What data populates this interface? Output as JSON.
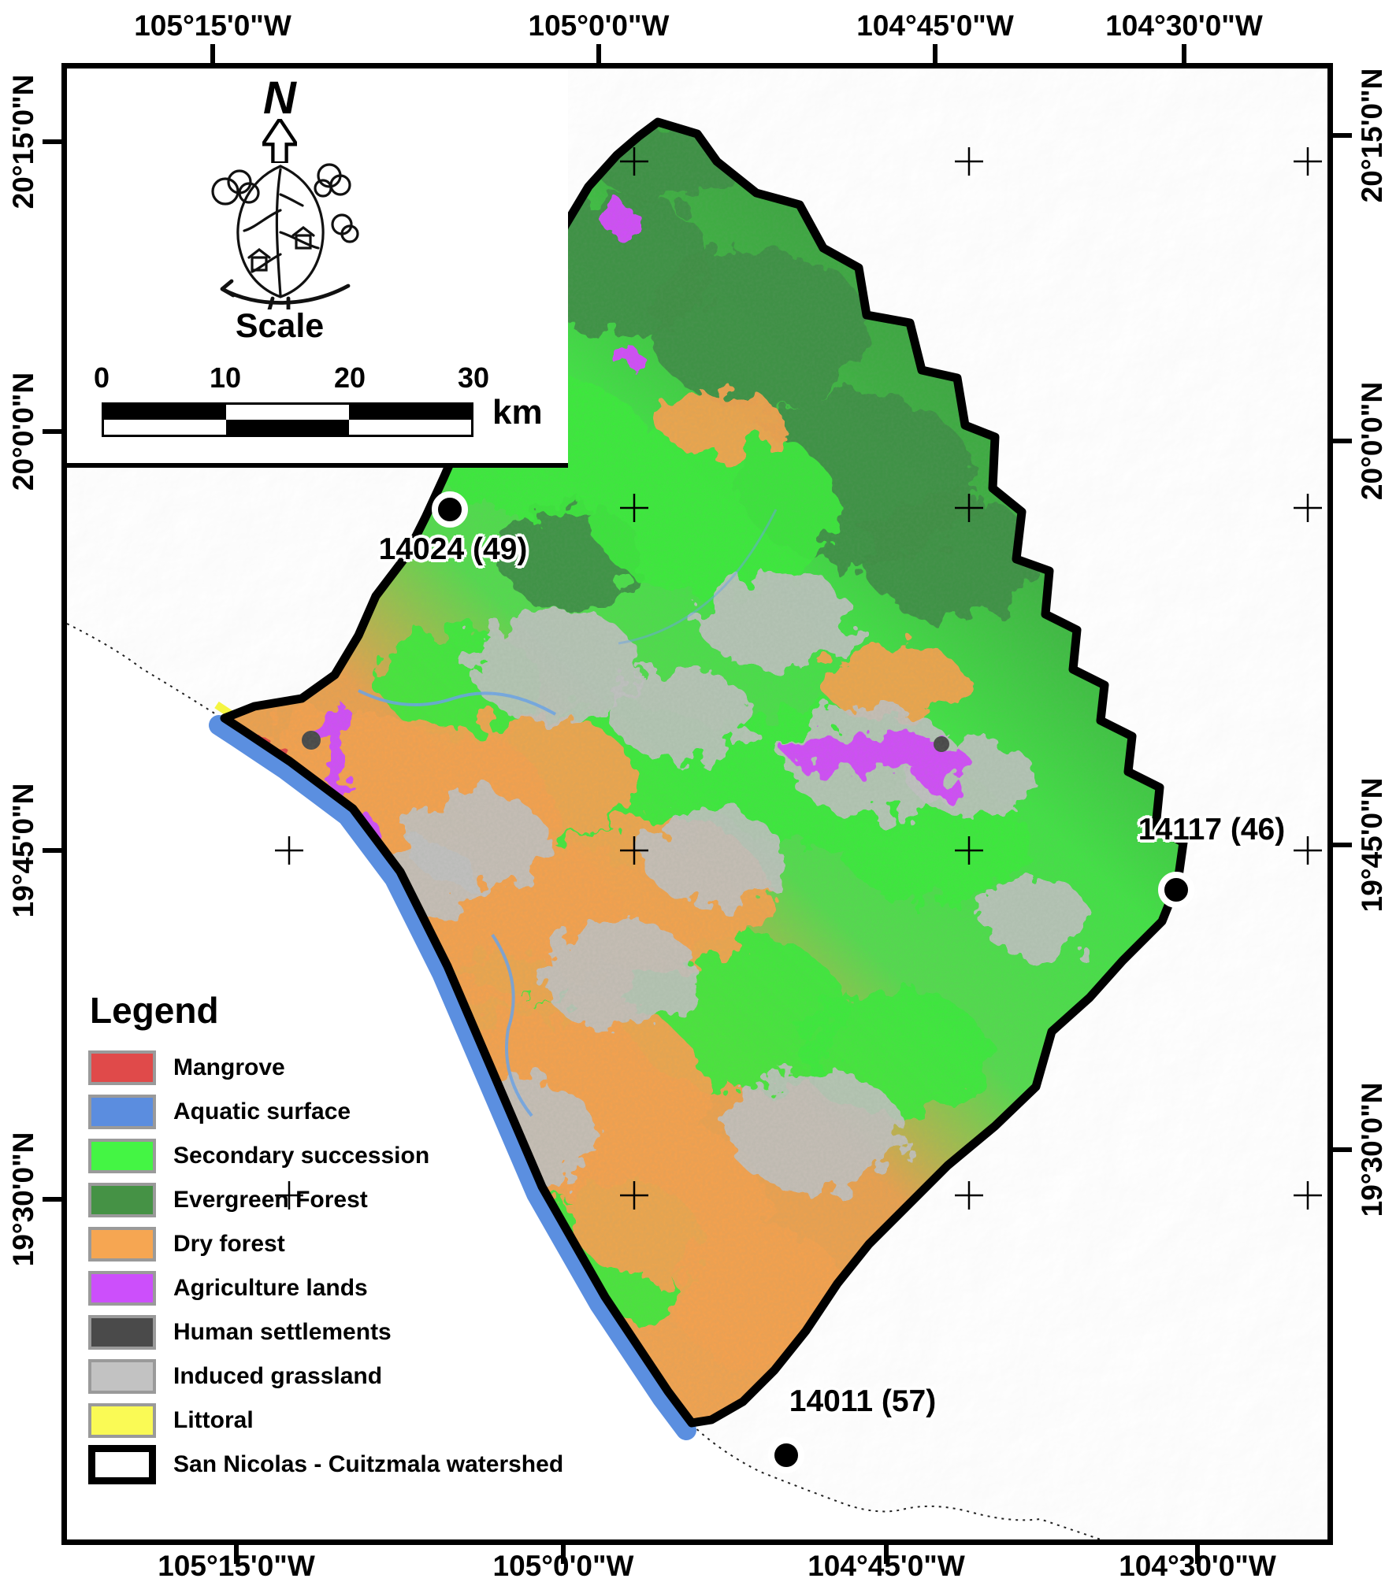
{
  "graticule": {
    "longitudes": [
      "105°15'0\"W",
      "105°0'0\"W",
      "104°45'0\"W",
      "104°30'0\"W"
    ],
    "latitudes": [
      "20°15'0\"N",
      "20°0'0\"N",
      "19°45'0\"N",
      "19°30'0\"N"
    ]
  },
  "stations": [
    {
      "label": "14024 (49)"
    },
    {
      "label": "14117 (46)"
    },
    {
      "label": "14011 (57)"
    }
  ],
  "inset": {
    "north_label": "N",
    "scale_title": "Scale",
    "scale_ticks": [
      "0",
      "10",
      "20",
      "30"
    ],
    "scale_unit": "km"
  },
  "legend": {
    "title": "Legend",
    "items": [
      {
        "label": "Mangrove",
        "color": "#e04a4a"
      },
      {
        "label": "Aquatic surface",
        "color": "#5b8ddf"
      },
      {
        "label": "Secondary succession",
        "color": "#44f544"
      },
      {
        "label": "Evergreen Forest",
        "color": "#459245"
      },
      {
        "label": "Dry forest",
        "color": "#f6a652"
      },
      {
        "label": "Agriculture lands",
        "color": "#cc4ffb"
      },
      {
        "label": "Human settlements",
        "color": "#4a4a4a"
      },
      {
        "label": "Induced grassland",
        "color": "#c2c2c2"
      },
      {
        "label": "Littoral",
        "color": "#fafa55"
      },
      {
        "label": "San Nicolas - Cuitzmala watershed",
        "color": "#ffffff",
        "outline": true
      }
    ]
  },
  "colors": {
    "watershed_boundary": "#000000",
    "coast_water": "#5b8fe0",
    "hillshade_land": "#e9e9e9",
    "sea": "#ffffff"
  }
}
